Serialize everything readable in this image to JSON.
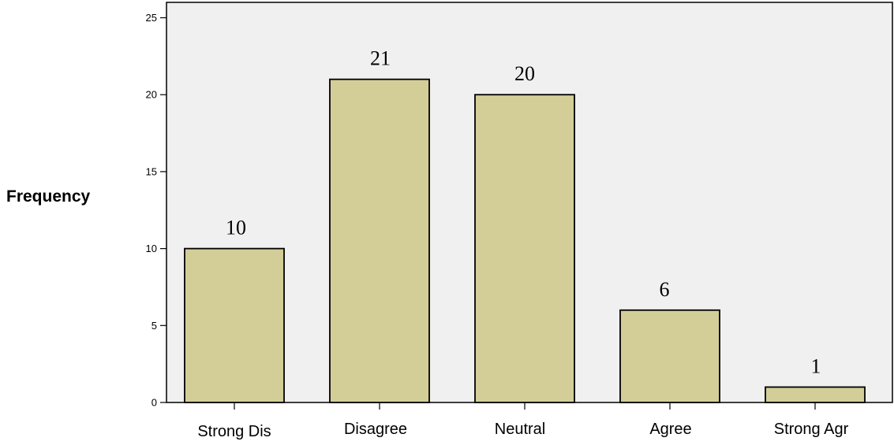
{
  "chart_data": {
    "type": "bar",
    "categories": [
      "Strong Dis",
      "Disagree",
      "Neutral",
      "Agree",
      "Strong Agr"
    ],
    "values": [
      10,
      21,
      20,
      6,
      1
    ],
    "xlabel": "",
    "ylabel": "Frequency",
    "ylim": [
      0,
      26
    ],
    "yticks": [
      0,
      5,
      10,
      15,
      20,
      25
    ],
    "data_labels": true,
    "grid": false,
    "colors": {
      "bar": "#d3cd98",
      "plot_background": "#f0f0f0",
      "stroke": "#000000"
    }
  }
}
